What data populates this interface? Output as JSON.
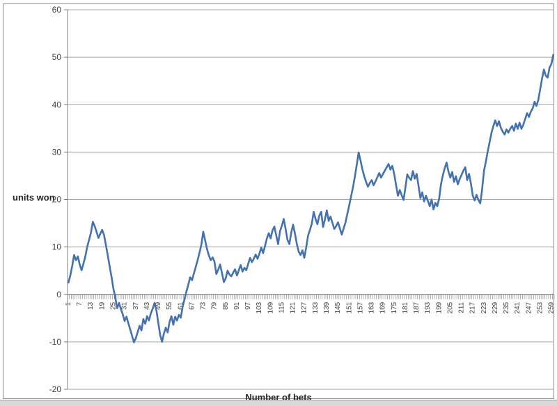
{
  "chart_data": {
    "type": "line",
    "title": "",
    "xlabel": "Number of bets",
    "ylabel": "units won",
    "legend": "none",
    "grid": "horizontal",
    "ylim": [
      -20,
      60
    ],
    "y_ticks": [
      60,
      50,
      40,
      30,
      20,
      10,
      0,
      -10,
      -20
    ],
    "x_count": 260,
    "x_tick_step": 6,
    "x_tick_labels": [
      "1",
      "7",
      "13",
      "19",
      "25",
      "31",
      "37",
      "43",
      "49",
      "55",
      "61",
      "67",
      "73",
      "79",
      "85",
      "91",
      "97",
      "103",
      "109",
      "115",
      "121",
      "127",
      "133",
      "139",
      "145",
      "151",
      "157",
      "163",
      "169",
      "175",
      "181",
      "187",
      "193",
      "199",
      "205",
      "211",
      "217",
      "223",
      "229",
      "235",
      "241",
      "247",
      "253",
      "259"
    ],
    "series": [
      {
        "name": "units won",
        "color": "#4472B0",
        "values": [
          2.5,
          4,
          6,
          8.3,
          7.2,
          8,
          6.3,
          5.1,
          6.5,
          8,
          10,
          11.5,
          13,
          15.3,
          14.4,
          13.2,
          11.9,
          12.8,
          13.6,
          12.5,
          10.4,
          8.2,
          5.9,
          3.7,
          1.2,
          -0.6,
          -2.9,
          -1.8,
          -3.1,
          -4.2,
          -5.6,
          -4.7,
          -6.1,
          -7.4,
          -8.8,
          -10.1,
          -9.2,
          -7.9,
          -6.6,
          -7.6,
          -5.2,
          -6.2,
          -4.6,
          -5.5,
          -4,
          -3,
          -1.8,
          -3.4,
          -6,
          -8.6,
          -10,
          -8.2,
          -7,
          -8,
          -5.8,
          -4.6,
          -6.4,
          -4.7,
          -5.5,
          -4.3,
          -4.9,
          -2.6,
          -1,
          0.6,
          2,
          3.6,
          3,
          4.4,
          5.8,
          7.2,
          8.8,
          10.5,
          13.2,
          11.4,
          9.6,
          8.2,
          7.2,
          7.8,
          6.9,
          4.3,
          5.2,
          6.3,
          4.5,
          2.6,
          3.4,
          5,
          4.2,
          3.8,
          4.6,
          5.3,
          4,
          5.1,
          6.2,
          4.8,
          5.6,
          5.1,
          6.4,
          7.7,
          6.8,
          7.5,
          8.4,
          7.5,
          8.6,
          9.9,
          8.7,
          10.2,
          11.8,
          12.9,
          11.8,
          13.5,
          14.3,
          12.4,
          10.6,
          13.3,
          14.5,
          15.9,
          13.8,
          11.5,
          10.6,
          13,
          14.7,
          12.8,
          10.6,
          9,
          8.3,
          9.3,
          7.7,
          9.9,
          12.4,
          13.6,
          14.9,
          17.4,
          15.9,
          14.8,
          16.6,
          17.4,
          14.2,
          15.8,
          17.7,
          15.5,
          16.4,
          15.1,
          13.8,
          14.4,
          15.2,
          13.9,
          12.6,
          13.9,
          15.2,
          17,
          18.8,
          20.7,
          22.6,
          24.8,
          27.3,
          29.9,
          28.3,
          26.4,
          24.9,
          23.7,
          22.7,
          23.5,
          24.1,
          23,
          23.8,
          24.7,
          25.6,
          24.6,
          25.4,
          26.1,
          26.8,
          27.5,
          26.3,
          27.1,
          25.4,
          23.1,
          20.8,
          22,
          20.9,
          19.9,
          22.5,
          25.3,
          24.6,
          24.1,
          26,
          24.4,
          25.4,
          22.9,
          20.3,
          21.5,
          19.6,
          20.8,
          19.7,
          18.6,
          20,
          17.9,
          19.3,
          18.6,
          20.1,
          23.2,
          25.1,
          26.6,
          27.8,
          25.9,
          24.6,
          25.8,
          23.7,
          24.9,
          23.2,
          24.3,
          25.2,
          26.1,
          26.8,
          24.1,
          25.4,
          23.4,
          20.8,
          19.8,
          21,
          19.9,
          19.2,
          22.2,
          26.1,
          28,
          30.2,
          32.1,
          34.1,
          35.5,
          36.7,
          35.5,
          36.5,
          35.1,
          34.3,
          33.7,
          34.8,
          34.1,
          34.9,
          35.5,
          34.5,
          36,
          34.9,
          36.2,
          34.9,
          35.8,
          37,
          38.2,
          37.4,
          38.5,
          39.2,
          40.6,
          39.7,
          41,
          43.2,
          45.5,
          47.4,
          46.1,
          45.7,
          47.8,
          48.6,
          50.5
        ]
      }
    ],
    "styles": {
      "line_color": "#4472B0",
      "gridline_color": "#A6A6A6",
      "axis_color": "#808080",
      "label_color": "#404040"
    }
  }
}
